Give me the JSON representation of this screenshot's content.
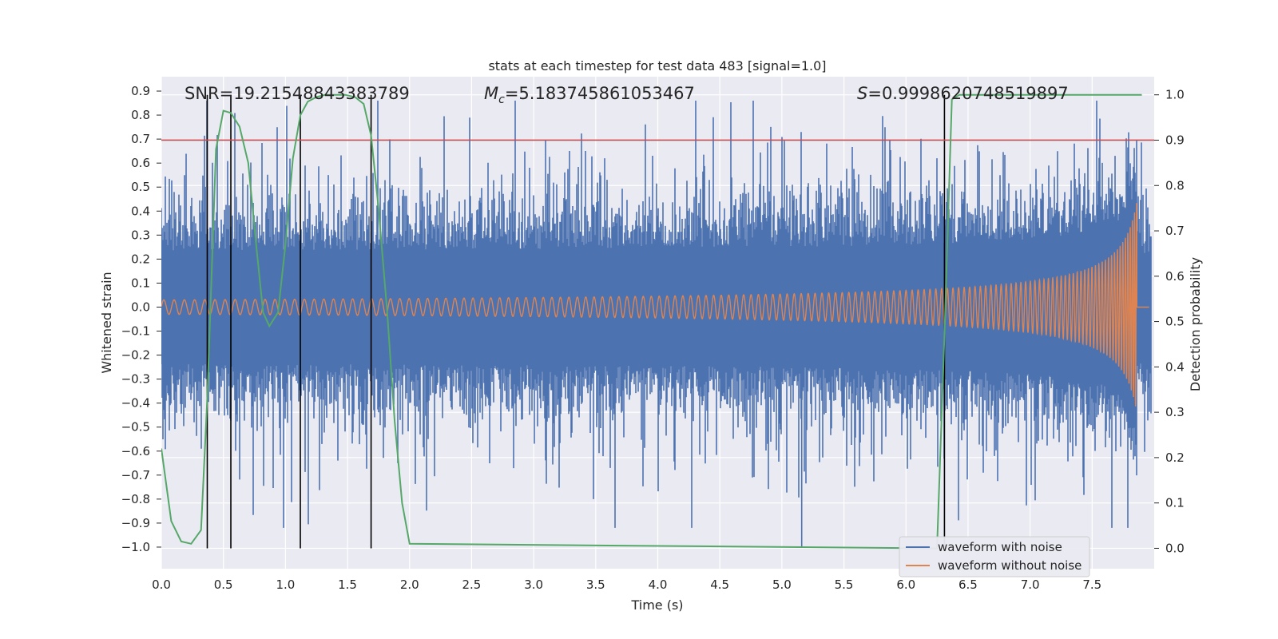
{
  "chart_data": {
    "type": "line",
    "title": "stats at each timestep for test data 483 [signal=1.0]",
    "xlabel": "Time (s)",
    "ylabel": "Whitened strain",
    "y2label": "Detection probability",
    "xlim": [
      0.0,
      8.0
    ],
    "ylim": [
      -1.09,
      0.96
    ],
    "y2lim": [
      -0.045,
      1.04
    ],
    "xticks": [
      "0.0",
      "0.5",
      "1.0",
      "1.5",
      "2.0",
      "2.5",
      "3.0",
      "3.5",
      "4.0",
      "4.5",
      "5.0",
      "5.5",
      "6.0",
      "6.5",
      "7.0",
      "7.5"
    ],
    "yticks": [
      "0.9",
      "0.8",
      "0.7",
      "0.6",
      "0.5",
      "0.4",
      "0.3",
      "0.2",
      "0.1",
      "0.0",
      "−0.1",
      "−0.2",
      "−0.3",
      "−0.4",
      "−0.5",
      "−0.6",
      "−0.7",
      "−0.8",
      "−0.9",
      "−1.0"
    ],
    "y2ticks": [
      "0.0",
      "0.1",
      "0.2",
      "0.3",
      "0.4",
      "0.5",
      "0.6",
      "0.7",
      "0.8",
      "0.9",
      "1.0"
    ],
    "annotations": {
      "snr": "SNR=19.21548843383789",
      "mc_symbol": "M",
      "mc_sub": "c",
      "mc_value": "=5.183745861053467",
      "s_symbol": "S",
      "s_value": "=0.9998620748519897"
    },
    "legend": {
      "position": "lower-right",
      "entries": [
        "waveform with noise",
        "waveform without noise"
      ]
    },
    "colors": {
      "noise": "#4c72b0",
      "signal": "#dd8452",
      "probability": "#55a868",
      "threshold": "#c44e52",
      "markers": "#000000",
      "plot_bg": "#eaeaf2",
      "grid": "#ffffff"
    },
    "threshold_probability": 0.9,
    "event_markers_s": [
      0.37,
      0.56,
      1.12,
      1.69,
      6.31
    ],
    "signal_end_s": 7.86,
    "noise_envelope": {
      "description": "noise amplitude approx 0.35 typical with peaks to about 0.85",
      "merger_peak_s": 7.85,
      "merger_peak_amplitude": 0.55,
      "min_spike_s": 5.16,
      "min_spike_value": -1.0
    },
    "probability_series": {
      "x": [
        0.0,
        0.08,
        0.16,
        0.24,
        0.32,
        0.37,
        0.44,
        0.5,
        0.56,
        0.63,
        0.7,
        0.76,
        0.82,
        0.87,
        0.94,
        1.0,
        1.06,
        1.12,
        1.18,
        1.25,
        1.32,
        1.4,
        1.48,
        1.56,
        1.63,
        1.69,
        1.75,
        1.82,
        1.88,
        1.94,
        2.0,
        6.25,
        6.31,
        6.37,
        6.43,
        6.5,
        7.9
      ],
      "y": [
        0.22,
        0.06,
        0.015,
        0.01,
        0.04,
        0.33,
        0.88,
        0.965,
        0.96,
        0.93,
        0.85,
        0.68,
        0.52,
        0.49,
        0.52,
        0.67,
        0.86,
        0.955,
        0.985,
        0.995,
        1.0,
        1.0,
        1.0,
        0.995,
        0.98,
        0.91,
        0.75,
        0.52,
        0.28,
        0.1,
        0.01,
        0.0,
        0.47,
        0.99,
        1.0,
        1.0,
        1.0
      ]
    },
    "signal_series": {
      "description": "chirp: amplitude grows from 0.03 to 0.55 and frequency increases before cutoff",
      "start_amplitude": 0.03,
      "peak_amplitude": 0.55
    }
  }
}
